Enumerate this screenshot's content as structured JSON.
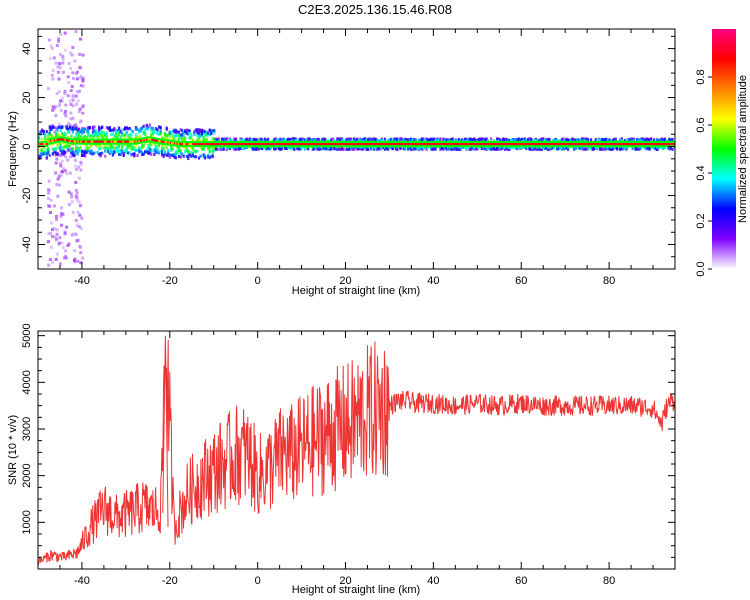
{
  "title": "C2E3.2025.136.15.46.R08",
  "chart_data": [
    {
      "type": "heatmap",
      "xlabel": "Height of straight line (km)",
      "ylabel": "Frequency (Hz)",
      "xlim": [
        -50,
        95
      ],
      "ylim": [
        -50,
        48
      ],
      "xticks": [
        -40,
        -20,
        0,
        20,
        40,
        60,
        80
      ],
      "yticks": [
        -40,
        -20,
        0,
        20,
        40
      ],
      "colorbar": {
        "label": "Normalized spectral amplitude",
        "range": [
          0,
          1
        ],
        "ticks": [
          "0.0",
          "0.2",
          "0.4",
          "0.6",
          "0.8"
        ],
        "colors": [
          "#ffffff",
          "#8000ff",
          "#0000ff",
          "#00ffff",
          "#00ff00",
          "#ffff00",
          "#ff8000",
          "#ff0000",
          "#ff0080"
        ]
      },
      "ridge": {
        "x": [
          -48,
          -45,
          -42,
          -38,
          -35,
          -32,
          -28,
          -25,
          -22,
          -18,
          -15,
          -10,
          -5,
          0,
          10,
          20,
          40,
          60,
          80,
          94
        ],
        "y": [
          2,
          3,
          2,
          2,
          2,
          2,
          2,
          3,
          2,
          1,
          1,
          1,
          1,
          1,
          1,
          1,
          1,
          1,
          1,
          1
        ]
      }
    },
    {
      "type": "line",
      "xlabel": "Height of straight line (km)",
      "ylabel": "SNR (10 * v/v)",
      "xlim": [
        -50,
        95
      ],
      "ylim": [
        0,
        5100
      ],
      "xticks": [
        -40,
        -20,
        0,
        20,
        40,
        60,
        80
      ],
      "yticks": [
        1000,
        2000,
        3000,
        4000,
        5000
      ],
      "color": "#ee3333",
      "x": [
        -50,
        -47,
        -44,
        -41,
        -38,
        -35,
        -32,
        -29,
        -26,
        -24,
        -22,
        -21,
        -19,
        -16,
        -13,
        -10,
        -7,
        -4,
        -2,
        0,
        2,
        4,
        6,
        8,
        10,
        12,
        14,
        16,
        18,
        20,
        22,
        24,
        26,
        28,
        30,
        32,
        34,
        36,
        38,
        40,
        45,
        50,
        55,
        60,
        65,
        70,
        75,
        80,
        85,
        90,
        92,
        93,
        94
      ],
      "y": [
        150,
        300,
        250,
        350,
        900,
        1300,
        1100,
        1200,
        1350,
        1250,
        1300,
        5000,
        900,
        1600,
        1900,
        2100,
        2300,
        2500,
        2400,
        2000,
        2100,
        2300,
        2500,
        2450,
        2600,
        2700,
        2800,
        2900,
        3000,
        3050,
        3150,
        3300,
        3350,
        3450,
        3500,
        3600,
        3600,
        3550,
        3550,
        3550,
        3500,
        3550,
        3500,
        3550,
        3500,
        3500,
        3500,
        3500,
        3500,
        3450,
        3100,
        3450,
        3600
      ]
    }
  ]
}
